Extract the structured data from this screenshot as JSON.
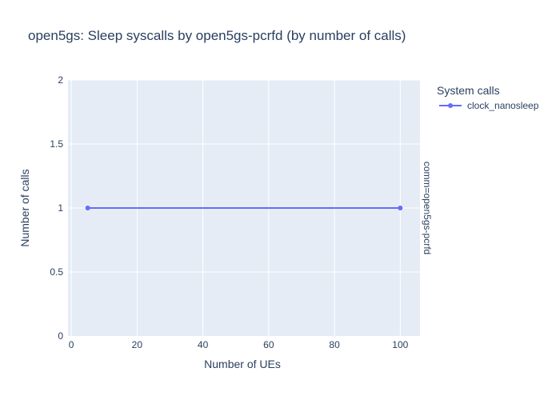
{
  "chart_data": {
    "type": "line",
    "title": "open5gs: Sleep syscalls by open5gs-pcrfd (by number of calls)",
    "xlabel": "Number of UEs",
    "ylabel": "Number of calls",
    "xlim": [
      -1,
      106
    ],
    "ylim": [
      0,
      2
    ],
    "x_ticks": [
      0,
      20,
      40,
      60,
      80,
      100
    ],
    "x_tick_labels": [
      "0",
      "20",
      "40",
      "60",
      "80",
      "100"
    ],
    "y_ticks": [
      0,
      0.5,
      1,
      1.5,
      2
    ],
    "y_tick_labels": [
      "0",
      "0.5",
      "1",
      "1.5",
      "2"
    ],
    "grid": true,
    "legend": {
      "title": "System calls",
      "placement": "right"
    },
    "facet_label": "comm=open5gs-pcrfd",
    "series": [
      {
        "name": "clock_nanosleep",
        "color": "#636efa",
        "x": [
          5,
          100
        ],
        "y": [
          1,
          1
        ]
      }
    ]
  },
  "colors": {
    "plot_background": "#e5ecf6",
    "grid": "#ffffff",
    "text": "#2a3f5f"
  }
}
